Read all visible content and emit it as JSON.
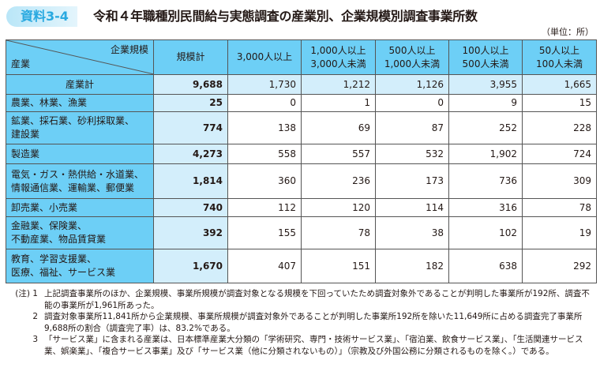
{
  "badge": "資料3-4",
  "title": "令和４年職種別民間給与実態調査の産業別、企業規模別調査事業所数",
  "unit": "（単位：所）",
  "table": {
    "corner_top": "企業規模",
    "corner_bottom": "産業",
    "columns": [
      "規模計",
      "3,000人以上",
      "1,000人以上\n3,000人未満",
      "500人以上\n1,000人未満",
      "100人以上\n500人未満",
      "50人以上\n100人未満"
    ],
    "rows": [
      {
        "label": "産業計",
        "values": [
          "9,688",
          "1,730",
          "1,212",
          "1,126",
          "3,955",
          "1,665"
        ]
      },
      {
        "label": "農業、林業、漁業",
        "values": [
          "25",
          "0",
          "1",
          "0",
          "9",
          "15"
        ]
      },
      {
        "label": "鉱業、採石業、砂利採取業、\n建設業",
        "values": [
          "774",
          "138",
          "69",
          "87",
          "252",
          "228"
        ]
      },
      {
        "label": "製造業",
        "values": [
          "4,273",
          "558",
          "557",
          "532",
          "1,902",
          "724"
        ]
      },
      {
        "label": "電気・ガス・熱供給・水道業、\n情報通信業、運輸業、郵便業",
        "values": [
          "1,814",
          "360",
          "236",
          "173",
          "736",
          "309"
        ]
      },
      {
        "label": "卸売業、小売業",
        "values": [
          "740",
          "112",
          "120",
          "114",
          "316",
          "78"
        ]
      },
      {
        "label": "金融業、保険業、\n不動産業、物品賃貸業",
        "values": [
          "392",
          "155",
          "78",
          "38",
          "102",
          "19"
        ]
      },
      {
        "label": "教育、学習支援業、\n医療、福祉、サービス業",
        "values": [
          "1,670",
          "407",
          "151",
          "182",
          "638",
          "292"
        ]
      }
    ]
  },
  "notes": [
    {
      "label": "(注) 1",
      "text": "上記調査事業所のほか、企業規模、事業所規模が調査対象となる規模を下回っていたため調査対象外であることが判明した事業所が192所、調査不能の事業所が1,961所あった。"
    },
    {
      "label": "2",
      "text": "調査対象事業所11,841所から企業規模、事業所規模が調査対象外であることが判明した事業所192所を除いた11,649所に占める調査完了事業所9,688所の割合（調査完了率）は、83.2%である。"
    },
    {
      "label": "3",
      "text": "「サービス業」に含まれる産業は、日本標準産業大分類の「学術研究、専門・技術サービス業」、「宿泊業、飲食サービス業」、「生活関連サービス業、娯楽業」、「複合サービス事業」及び「サービス業（他に分類されないもの）」（宗教及び外国公務に分類されるものを除く。）である。"
    }
  ]
}
